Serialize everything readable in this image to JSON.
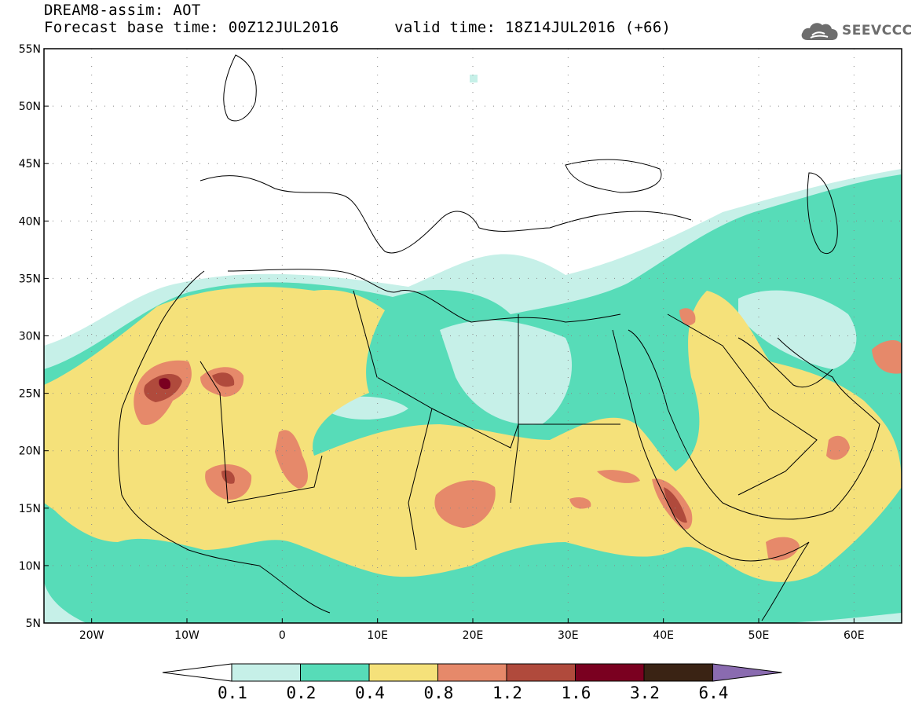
{
  "header": {
    "title": "DREAM8-assim: AOT",
    "base_label": "Forecast base time:",
    "base_time": "00Z12JUL2016",
    "valid_label": "valid time:",
    "valid_time": "18Z14JUL2016 (+66)"
  },
  "logo": {
    "text": "SEEVCCC",
    "icon": "cloud-icon"
  },
  "map": {
    "lon_labels": [
      "20W",
      "10W",
      "0",
      "10E",
      "20E",
      "30E",
      "40E",
      "50E",
      "60E"
    ],
    "lat_labels": [
      "55N",
      "50N",
      "45N",
      "40N",
      "35N",
      "30N",
      "25N",
      "20N",
      "15N",
      "10N",
      "5N"
    ],
    "extent": {
      "lon_min": -25,
      "lon_max": 65,
      "lat_min": 5,
      "lat_max": 55
    },
    "grid": "dotted"
  },
  "colorbar": {
    "labels": [
      "0.1",
      "0.2",
      "0.4",
      "0.8",
      "1.2",
      "1.6",
      "3.2",
      "6.4"
    ],
    "colors": [
      "#ffffff",
      "#c6f0e8",
      "#57dcb8",
      "#f5e17a",
      "#e6896a",
      "#b04a3c",
      "#7a0020",
      "#3a2314",
      "#8a6bb0"
    ]
  }
}
